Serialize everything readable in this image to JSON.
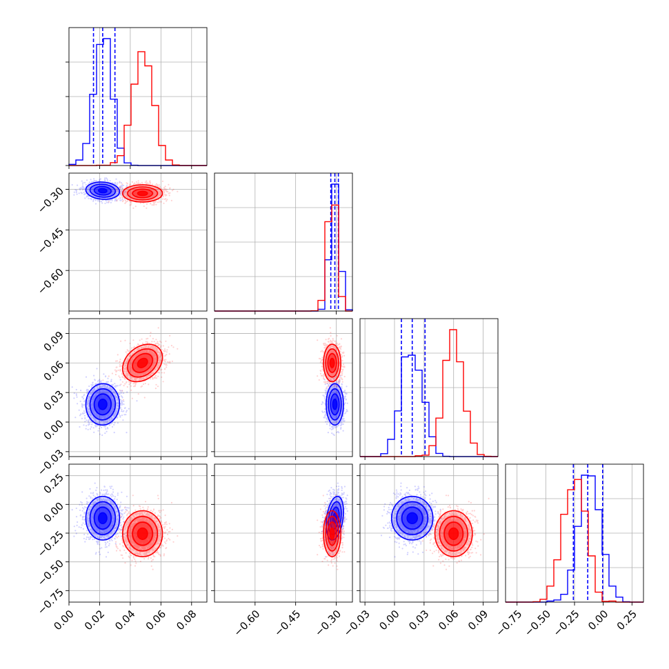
{
  "chart_data": {
    "type": "corner",
    "grid": true,
    "series": [
      {
        "color": "#0000ff",
        "mean": [
          0.022,
          -0.305,
          0.018,
          -0.12
        ],
        "sd": [
          0.0055,
          0.016,
          0.0105,
          0.095
        ],
        "corr": [
          [
            1,
            -0.1,
            0.02,
            0.0
          ],
          [
            -0.1,
            1,
            0.0,
            0.3
          ],
          [
            0.02,
            0.0,
            1,
            0.0
          ],
          [
            0.0,
            0.3,
            0.0,
            1
          ]
        ],
        "quantiles": [
          [
            0.016,
            0.022,
            0.03
          ],
          [
            -0.32,
            -0.305,
            -0.292
          ],
          [
            0.007,
            0.018,
            0.031
          ],
          [
            -0.26,
            -0.135,
            -0.005
          ]
        ]
      },
      {
        "color": "#ff0000",
        "mean": [
          0.048,
          -0.315,
          0.06,
          -0.255
        ],
        "sd": [
          0.0065,
          0.016,
          0.0095,
          0.1
        ],
        "corr": [
          [
            1,
            0.0,
            0.3,
            0.0
          ],
          [
            0.0,
            1,
            0.0,
            0.0
          ],
          [
            0.3,
            0.0,
            1,
            0.0
          ],
          [
            0.0,
            0.0,
            0.0,
            1
          ]
        ]
      }
    ],
    "axes": [
      {
        "range": [
          0.0,
          0.09
        ],
        "ticks": [
          "0.00",
          "0.02",
          "0.04",
          "0.06",
          "0.08"
        ]
      },
      {
        "range": [
          -0.75,
          -0.24
        ],
        "ticks": [
          "-0.60",
          "-0.45",
          "-0.30"
        ]
      },
      {
        "range": [
          -0.035,
          0.105
        ],
        "ticks": [
          "-0.03",
          "0.00",
          "0.03",
          "0.06",
          "0.09"
        ]
      },
      {
        "range": [
          -0.85,
          0.35
        ],
        "ticks": [
          "-0.75",
          "-0.50",
          "-0.25",
          "0.00",
          "0.25"
        ]
      }
    ]
  }
}
